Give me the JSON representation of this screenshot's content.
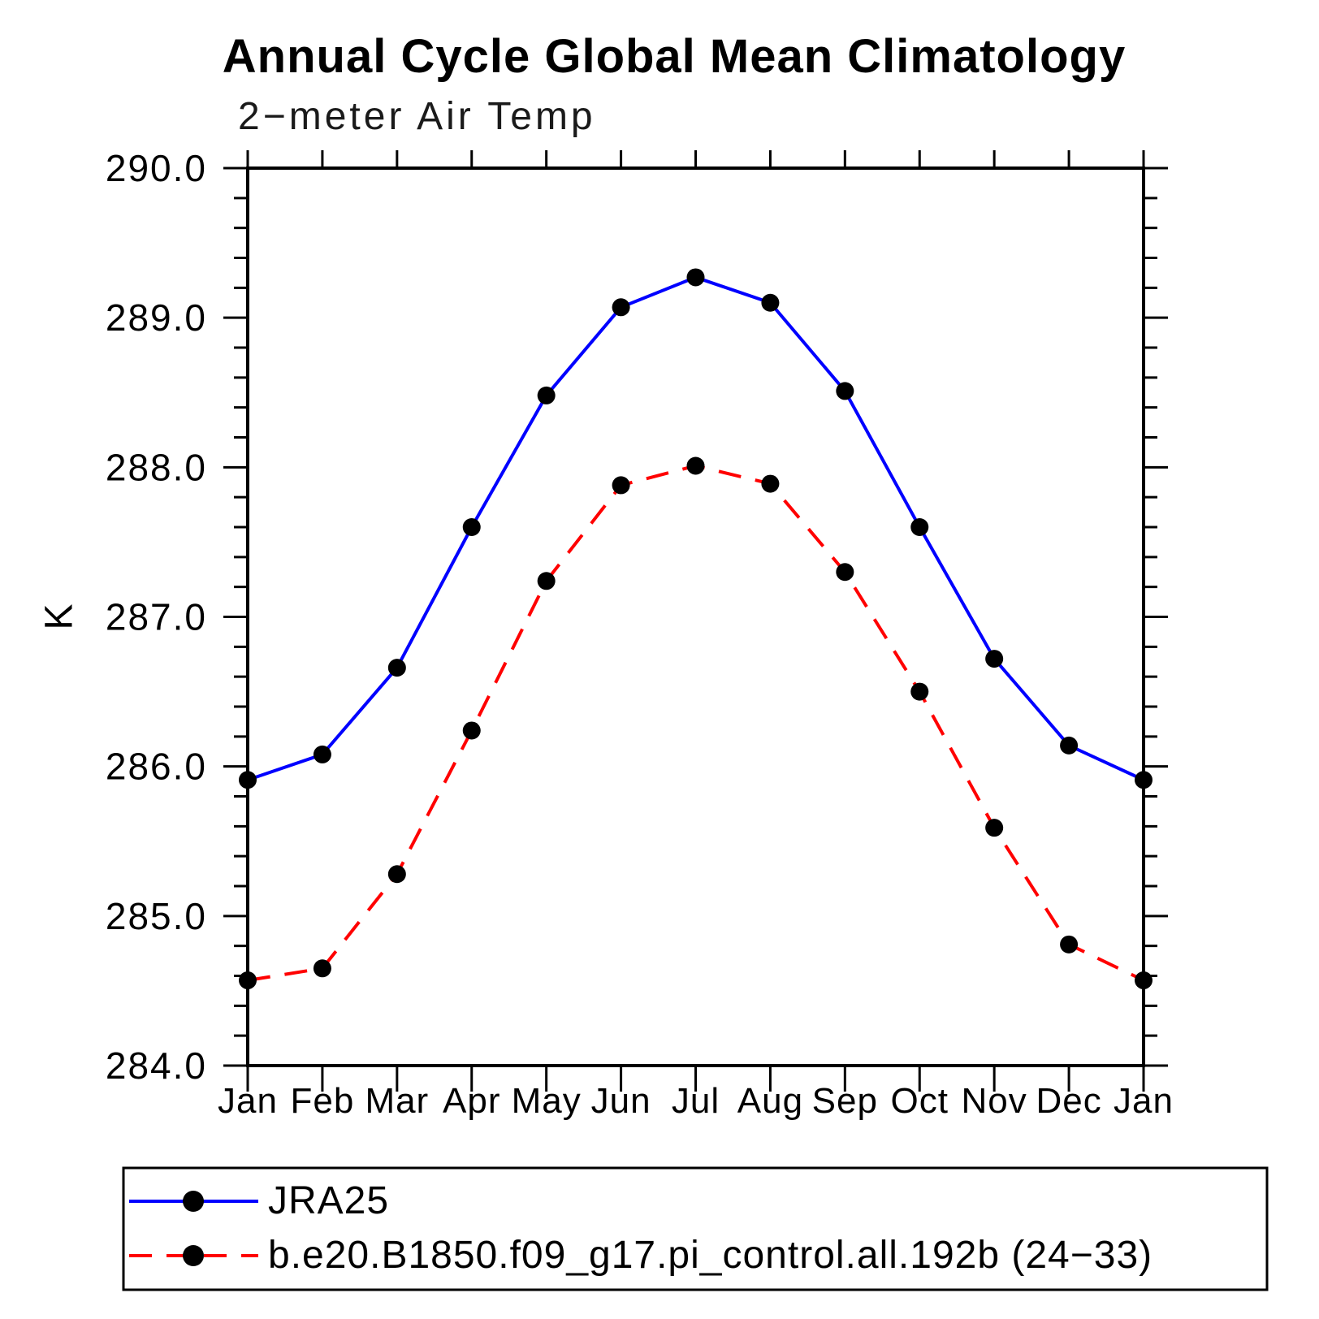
{
  "header": {
    "title": "Annual Cycle Global Mean Climatology",
    "subtitle": "2−meter Air Temp"
  },
  "chart_data": {
    "type": "line",
    "title": "Annual Cycle Global Mean Climatology",
    "subtitle": "2−meter Air Temp",
    "xlabel": "",
    "ylabel": "K",
    "categories": [
      "Jan",
      "Feb",
      "Mar",
      "Apr",
      "May",
      "Jun",
      "Jul",
      "Aug",
      "Sep",
      "Oct",
      "Nov",
      "Dec",
      "Jan"
    ],
    "ylim": [
      284.0,
      290.0
    ],
    "ytick_interval": 1.0,
    "yminor_interval": 0.2,
    "yticks": [
      "290.0",
      "289.0",
      "288.0",
      "287.0",
      "286.0",
      "285.0",
      "284.0"
    ],
    "grid": false,
    "legend_position": "bottom-left-box",
    "frame": "box-with-outward-ticks",
    "series": [
      {
        "name": "JRA25",
        "color": "#0000ff",
        "line_style": "solid",
        "marker": "filled-circle",
        "marker_color": "#000000",
        "values": [
          285.91,
          286.08,
          286.66,
          287.6,
          288.48,
          289.07,
          289.27,
          289.1,
          288.51,
          287.6,
          286.72,
          286.14,
          285.91
        ]
      },
      {
        "name": "b.e20.B1850.f09_g17.pi_control.all.192b (24−33)",
        "color": "#ff0000",
        "line_style": "dashed",
        "marker": "filled-circle",
        "marker_color": "#000000",
        "values": [
          284.57,
          284.65,
          285.28,
          286.24,
          287.24,
          287.88,
          288.01,
          287.89,
          287.3,
          286.5,
          285.59,
          284.81,
          284.57
        ]
      }
    ]
  },
  "colors": {
    "axis": "#000000",
    "background": "#ffffff",
    "series1": "#0000ff",
    "series2": "#ff0000",
    "marker": "#000000"
  }
}
